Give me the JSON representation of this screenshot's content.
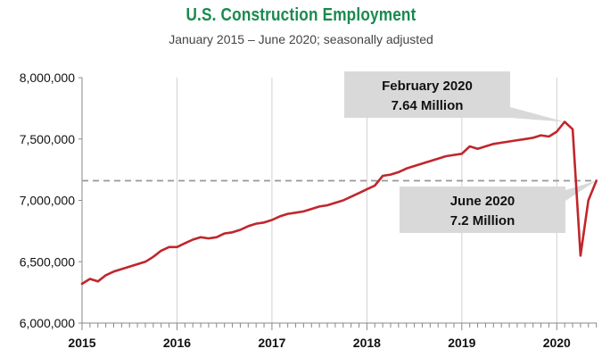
{
  "chart_data": {
    "type": "line",
    "title": "U.S. Construction Employment",
    "subtitle": "January 2015 – June 2020; seasonally adjusted",
    "xlabel": "",
    "ylabel": "",
    "xlim": [
      2015,
      2020.42
    ],
    "ylim": [
      6000000,
      8000000
    ],
    "y_ticks": [
      6000000,
      6500000,
      7000000,
      7500000,
      8000000
    ],
    "y_tick_labels": [
      "6,000,000",
      "6,500,000",
      "7,000,000",
      "7,500,000",
      "8,000,000"
    ],
    "x_ticks": [
      2015,
      2016,
      2017,
      2018,
      2019,
      2020
    ],
    "x_tick_labels": [
      "2015",
      "2016",
      "2017",
      "2018",
      "2019",
      "2020"
    ],
    "grid": "vertical-only",
    "legend": "none",
    "line_color": "#c0262c",
    "reference_line": {
      "value": 7160000,
      "style": "dashed",
      "color": "#999999"
    },
    "series": [
      {
        "x": [
          2015.0,
          2015.083,
          2015.167,
          2015.25,
          2015.333,
          2015.417,
          2015.5,
          2015.583,
          2015.667,
          2015.75,
          2015.833,
          2015.917,
          2016.0,
          2016.083,
          2016.167,
          2016.25,
          2016.333,
          2016.417,
          2016.5,
          2016.583,
          2016.667,
          2016.75,
          2016.833,
          2016.917,
          2017.0,
          2017.083,
          2017.167,
          2017.25,
          2017.333,
          2017.417,
          2017.5,
          2017.583,
          2017.667,
          2017.75,
          2017.833,
          2017.917,
          2018.0,
          2018.083,
          2018.167,
          2018.25,
          2018.333,
          2018.417,
          2018.5,
          2018.583,
          2018.667,
          2018.75,
          2018.833,
          2018.917,
          2019.0,
          2019.083,
          2019.167,
          2019.25,
          2019.333,
          2019.417,
          2019.5,
          2019.583,
          2019.667,
          2019.75,
          2019.833,
          2019.917,
          2020.0,
          2020.083,
          2020.167,
          2020.25,
          2020.333,
          2020.417
        ],
        "values": [
          6320000,
          6360000,
          6340000,
          6390000,
          6420000,
          6440000,
          6460000,
          6480000,
          6500000,
          6540000,
          6590000,
          6620000,
          6620000,
          6650000,
          6680000,
          6700000,
          6690000,
          6700000,
          6730000,
          6740000,
          6760000,
          6790000,
          6810000,
          6820000,
          6840000,
          6870000,
          6890000,
          6900000,
          6910000,
          6930000,
          6950000,
          6960000,
          6980000,
          7000000,
          7030000,
          7060000,
          7090000,
          7120000,
          7200000,
          7210000,
          7230000,
          7260000,
          7280000,
          7300000,
          7320000,
          7340000,
          7360000,
          7370000,
          7380000,
          7440000,
          7420000,
          7440000,
          7460000,
          7470000,
          7480000,
          7490000,
          7500000,
          7510000,
          7530000,
          7520000,
          7560000,
          7640000,
          7580000,
          6550000,
          7000000,
          7160000
        ]
      }
    ],
    "annotations": [
      {
        "line1": "February 2020",
        "line2": "7.64 Million",
        "point_x": 2020.083,
        "point_y": 7640000
      },
      {
        "line1": "June 2020",
        "line2": "7.2 Million",
        "point_x": 2020.417,
        "point_y": 7160000
      }
    ]
  }
}
